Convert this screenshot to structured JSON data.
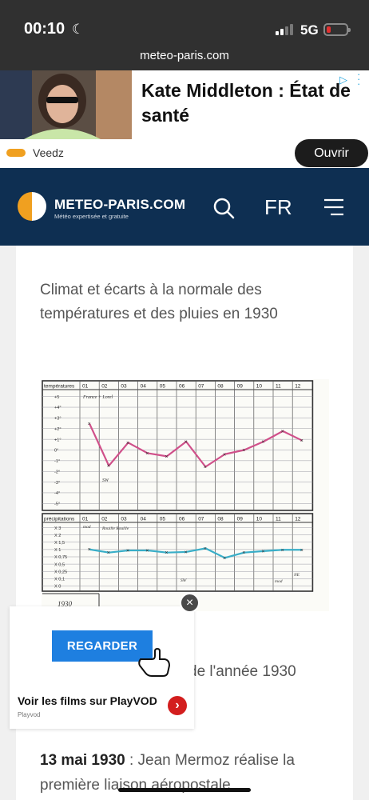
{
  "status": {
    "time": "00:10",
    "network": "5G",
    "url": "meteo-paris.com"
  },
  "top_ad": {
    "title": "Kate Middleton : État de santé",
    "advertiser": "Veedz",
    "cta": "Ouvrir"
  },
  "header": {
    "logo_name": "METEO-PARIS.COM",
    "logo_tagline": "Météo expertisée et gratuite",
    "language": "FR"
  },
  "article": {
    "intro": "Climat et écarts à la normale des températures et des pluies en 1930",
    "partial_heading": "de l'année 1930",
    "event_date": "13 mai 1930",
    "event_text": " : Jean Mermoz réalise la première liaison aéropostale"
  },
  "chart_data": {
    "type": "line",
    "panels": [
      {
        "name": "températures",
        "x": [
          "01",
          "02",
          "03",
          "04",
          "05",
          "06",
          "07",
          "08",
          "09",
          "10",
          "11",
          "12"
        ],
        "y_ticks": [
          "+5",
          "+4°",
          "+3°",
          "+2°",
          "+1°",
          "0°",
          "-1°",
          "-2°",
          "-3°",
          "-4°",
          "-5°"
        ],
        "values": [
          2.5,
          -1.5,
          0.7,
          -0.3,
          -0.6,
          0.8,
          -1.6,
          -0.4,
          0.0,
          0.8,
          1.8,
          0.9
        ],
        "color": "#d0508a",
        "annotations": [
          "France + Lorel",
          "SW"
        ]
      },
      {
        "name": "précipitations",
        "x": [
          "01",
          "02",
          "03",
          "04",
          "05",
          "06",
          "07",
          "08",
          "09",
          "10",
          "11",
          "12"
        ],
        "y_ticks": [
          "X 3",
          "X 2",
          "X 1,5",
          "X 1",
          "X 0,75",
          "X 0,5",
          "X 0,25",
          "X 0,1",
          "X 0"
        ],
        "values": [
          1.0,
          0.85,
          0.95,
          0.95,
          0.85,
          0.88,
          1.05,
          0.6,
          0.85,
          0.92,
          0.98,
          0.98
        ],
        "color": "#38aec8",
        "annotations": [
          "mod",
          "Rouille Rouille",
          "SW",
          "mod",
          "NE"
        ]
      }
    ],
    "year_label": "1930"
  },
  "video_ad": {
    "button": "REGARDER",
    "title": "Voir les films sur PlayVOD",
    "source": "Playvod"
  }
}
